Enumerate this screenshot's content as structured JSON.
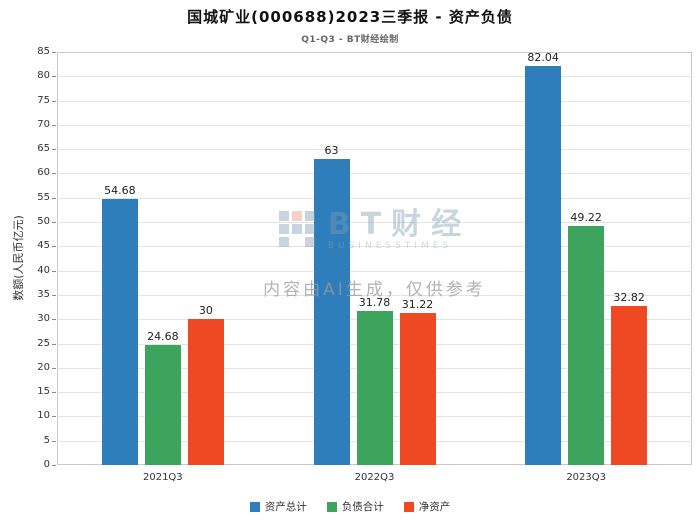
{
  "title": "国城矿业(000688)2023三季报 - 资产负债",
  "subtitle": "Q1-Q3 - BT财经绘制",
  "watermark": {
    "brand": "BT财经",
    "brand_sub": "BUSINESSTIMES",
    "note": "内容由AI生成，仅供参考"
  },
  "chart_data": {
    "type": "bar",
    "categories": [
      "2021Q3",
      "2022Q3",
      "2023Q3"
    ],
    "series": [
      {
        "name": "资产总计",
        "color": "#2e7ebb",
        "values": [
          54.68,
          63,
          82.04
        ]
      },
      {
        "name": "负债合计",
        "color": "#3ca45c",
        "values": [
          24.68,
          31.78,
          49.22
        ]
      },
      {
        "name": "净资产",
        "color": "#ee4922",
        "values": [
          30,
          31.22,
          32.82
        ]
      }
    ],
    "xlabel": "",
    "ylabel": "数额(人民币亿元)",
    "ylim": [
      0,
      85
    ],
    "ytick_step": 5,
    "grid": true,
    "legend_position": "bottom"
  }
}
